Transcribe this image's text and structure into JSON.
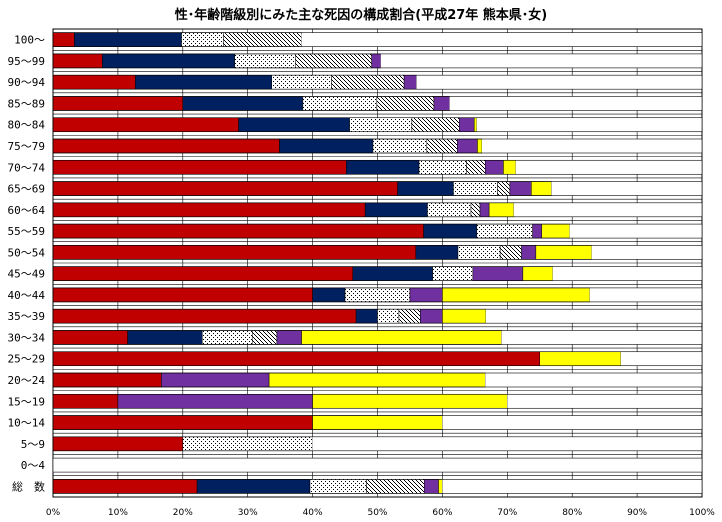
{
  "chart_data": {
    "type": "bar",
    "orientation": "horizontal",
    "stacked": true,
    "title": "性･年齢階級別にみた主な死因の構成割合(平成27年 熊本県･女)",
    "xlabel": "",
    "ylabel": "",
    "xlim": [
      0,
      100
    ],
    "x_ticks": [
      "0%",
      "10%",
      "20%",
      "30%",
      "40%",
      "50%",
      "60%",
      "70%",
      "80%",
      "90%",
      "100%"
    ],
    "grid": true,
    "legend": "none",
    "categories": [
      "100～",
      "95～99",
      "90～94",
      "85～89",
      "80～84",
      "75～79",
      "70～74",
      "65～69",
      "60～64",
      "55～59",
      "50～54",
      "45～49",
      "40～44",
      "35～39",
      "30～34",
      "25～29",
      "20～24",
      "15～19",
      "10～14",
      "5～9",
      "0～4",
      "総　数"
    ],
    "series": [
      {
        "color": "#c00000",
        "pattern": "solid",
        "values": [
          3.3,
          7.6,
          12.7,
          20.0,
          28.6,
          34.9,
          45.2,
          53.1,
          48.1,
          57.1,
          55.9,
          46.2,
          40.0,
          46.7,
          11.5,
          75.0,
          16.7,
          10.0,
          40.0,
          20.0,
          0,
          22.2
        ]
      },
      {
        "color": "#002060",
        "pattern": "solid",
        "values": [
          16.5,
          20.4,
          21.0,
          18.5,
          17.1,
          14.4,
          11.2,
          8.6,
          9.6,
          8.2,
          6.5,
          12.3,
          5.0,
          3.3,
          11.5,
          0,
          0,
          0,
          0,
          0,
          0,
          17.4
        ]
      },
      {
        "color": "#ffffff",
        "pattern": "dots",
        "values": [
          6.5,
          9.4,
          9.2,
          11.4,
          9.6,
          8.3,
          7.3,
          6.8,
          6.7,
          8.6,
          6.5,
          6.2,
          10.0,
          3.3,
          7.7,
          0,
          0,
          0,
          0,
          20.0,
          0,
          8.7
        ]
      },
      {
        "color": "#ffffff",
        "pattern": "dashes",
        "values": [
          12.0,
          11.7,
          11.2,
          8.8,
          7.3,
          4.7,
          2.9,
          1.9,
          1.4,
          0,
          3.3,
          0,
          0,
          3.3,
          3.8,
          0,
          0,
          0,
          0,
          0,
          0,
          8.9
        ]
      },
      {
        "color": "#7030a0",
        "pattern": "solid",
        "values": [
          0,
          1.4,
          1.9,
          2.4,
          2.3,
          3.1,
          2.8,
          3.3,
          1.4,
          1.4,
          2.2,
          7.7,
          5.0,
          3.4,
          3.8,
          0,
          16.6,
          30.0,
          0,
          0,
          0,
          2.2
        ]
      },
      {
        "color": "#ffff00",
        "pattern": "solid",
        "values": [
          0,
          0,
          0,
          0,
          0.4,
          0.7,
          1.9,
          3.1,
          3.8,
          4.3,
          8.6,
          4.6,
          22.7,
          6.7,
          30.8,
          12.5,
          33.3,
          30.0,
          20.0,
          0,
          0,
          0.6
        ]
      },
      {
        "color": "#ffffff",
        "pattern": "blank",
        "values": [
          61.7,
          49.5,
          44.0,
          38.9,
          34.7,
          33.9,
          28.7,
          23.2,
          29.0,
          20.4,
          17.0,
          23.0,
          17.3,
          33.3,
          30.9,
          12.5,
          33.4,
          30.0,
          40.0,
          60.0,
          100,
          40.0
        ]
      }
    ]
  }
}
